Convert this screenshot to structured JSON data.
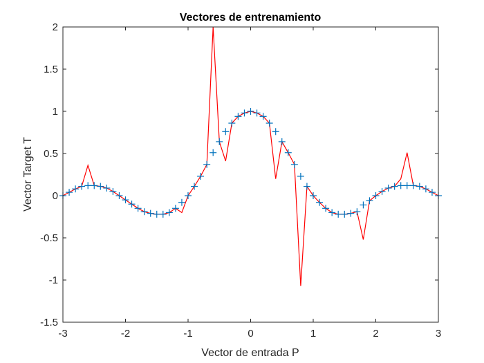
{
  "chart_data": {
    "type": "line",
    "title": "Vectores de entrenamiento",
    "xlabel": "Vector de entrada P",
    "ylabel": "Vector Target T",
    "xlim": [
      -3,
      3
    ],
    "ylim": [
      -1.5,
      2
    ],
    "xticks": [
      "-3",
      "-2",
      "-1",
      "0",
      "1",
      "2",
      "3"
    ],
    "yticks": [
      "-1.5",
      "-1",
      "-0.5",
      "0",
      "0.5",
      "1",
      "1.5",
      "2"
    ],
    "grid": false,
    "colors": {
      "targets": "#0072BD",
      "network": "#FF0000",
      "axes": "#262626"
    },
    "series": [
      {
        "marker": "+",
        "x": [
          -3.0,
          -2.9,
          -2.8,
          -2.7,
          -2.6,
          -2.5,
          -2.4,
          -2.3,
          -2.2,
          -2.1,
          -2.0,
          -1.9,
          -1.8,
          -1.7,
          -1.6,
          -1.5,
          -1.4,
          -1.3,
          -1.2,
          -1.1,
          -1.0,
          -0.9,
          -0.8,
          -0.7,
          -0.6,
          -0.5,
          -0.4,
          -0.3,
          -0.2,
          -0.1,
          0.0,
          0.1,
          0.2,
          0.3,
          0.4,
          0.5,
          0.6,
          0.7,
          0.8,
          0.9,
          1.0,
          1.1,
          1.2,
          1.3,
          1.4,
          1.5,
          1.6,
          1.7,
          1.8,
          1.9,
          2.0,
          2.1,
          2.2,
          2.3,
          2.4,
          2.5,
          2.6,
          2.7,
          2.8,
          2.9,
          3.0
        ],
        "y": [
          0.0,
          0.04,
          0.08,
          0.11,
          0.12,
          0.12,
          0.11,
          0.09,
          0.05,
          0.0,
          -0.05,
          -0.1,
          -0.15,
          -0.19,
          -0.21,
          -0.22,
          -0.22,
          -0.2,
          -0.15,
          -0.08,
          0.0,
          0.11,
          0.23,
          0.37,
          0.51,
          0.64,
          0.76,
          0.86,
          0.94,
          0.98,
          1.0,
          0.98,
          0.94,
          0.86,
          0.76,
          0.64,
          0.51,
          0.37,
          0.23,
          0.11,
          0.0,
          -0.08,
          -0.15,
          -0.2,
          -0.22,
          -0.22,
          -0.21,
          -0.19,
          -0.11,
          -0.06,
          0.0,
          0.05,
          0.09,
          0.11,
          0.12,
          0.12,
          0.12,
          0.11,
          0.08,
          0.04,
          0.0
        ]
      },
      {
        "x": [
          -3.0,
          -2.9,
          -2.8,
          -2.7,
          -2.6,
          -2.5,
          -2.4,
          -2.3,
          -2.2,
          -2.1,
          -2.0,
          -1.9,
          -1.8,
          -1.7,
          -1.6,
          -1.5,
          -1.4,
          -1.3,
          -1.2,
          -1.1,
          -1.0,
          -0.9,
          -0.8,
          -0.7,
          -0.6,
          -0.5,
          -0.4,
          -0.3,
          -0.2,
          -0.1,
          0.0,
          0.1,
          0.2,
          0.3,
          0.4,
          0.5,
          0.6,
          0.7,
          0.8,
          0.9,
          1.0,
          1.1,
          1.2,
          1.3,
          1.4,
          1.5,
          1.6,
          1.7,
          1.8,
          1.9,
          2.0,
          2.1,
          2.2,
          2.3,
          2.4,
          2.5,
          2.6,
          2.7,
          2.8,
          2.9,
          3.0
        ],
        "y": [
          0.0,
          0.04,
          0.08,
          0.11,
          0.36,
          0.12,
          0.11,
          0.09,
          0.05,
          0.0,
          -0.05,
          -0.1,
          -0.15,
          -0.19,
          -0.21,
          -0.22,
          -0.22,
          -0.2,
          -0.15,
          -0.2,
          0.0,
          0.11,
          0.23,
          0.37,
          2.0,
          0.64,
          0.41,
          0.86,
          0.94,
          0.98,
          1.0,
          0.98,
          0.94,
          0.86,
          0.2,
          0.64,
          0.51,
          0.37,
          -1.07,
          0.11,
          0.0,
          -0.08,
          -0.15,
          -0.2,
          -0.22,
          -0.22,
          -0.21,
          -0.19,
          -0.52,
          -0.06,
          0.0,
          0.05,
          0.09,
          0.11,
          0.2,
          0.51,
          0.12,
          0.11,
          0.08,
          0.04,
          0.0
        ]
      }
    ]
  }
}
